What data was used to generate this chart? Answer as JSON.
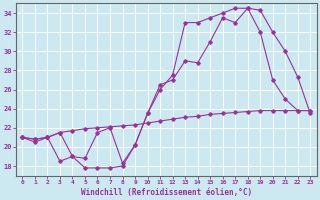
{
  "xlabel": "Windchill (Refroidissement éolien,°C)",
  "xlim": [
    -0.5,
    23.5
  ],
  "ylim": [
    17.0,
    35.0
  ],
  "yticks": [
    18,
    20,
    22,
    24,
    26,
    28,
    30,
    32,
    34
  ],
  "xticks": [
    0,
    1,
    2,
    3,
    4,
    5,
    6,
    7,
    8,
    9,
    10,
    11,
    12,
    13,
    14,
    15,
    16,
    17,
    18,
    19,
    20,
    21,
    22,
    23
  ],
  "background_color": "#cce8f0",
  "grid_color": "#ffffff",
  "line_color": "#993399",
  "curve_diag_x": [
    0,
    1,
    2,
    3,
    4,
    5,
    6,
    7,
    8,
    9,
    10,
    11,
    12,
    13,
    14,
    15,
    16,
    17,
    18,
    19,
    20,
    21,
    22,
    23
  ],
  "curve_diag_y": [
    21.0,
    20.8,
    21.0,
    21.5,
    21.7,
    21.9,
    22.0,
    22.1,
    22.2,
    22.3,
    22.5,
    22.7,
    22.9,
    23.1,
    23.2,
    23.4,
    23.5,
    23.6,
    23.7,
    23.8,
    23.8,
    23.8,
    23.8,
    23.8
  ],
  "curve_mid_x": [
    0,
    1,
    2,
    3,
    4,
    5,
    6,
    7,
    8,
    9,
    10,
    11,
    12,
    13,
    14,
    15,
    16,
    17,
    18,
    19,
    20,
    21,
    22,
    23
  ],
  "curve_mid_y": [
    21.0,
    20.8,
    21.0,
    18.5,
    19.0,
    17.8,
    17.8,
    17.8,
    18.0,
    20.2,
    23.5,
    26.5,
    27.0,
    29.0,
    28.8,
    31.0,
    33.5,
    33.0,
    34.5,
    32.0,
    27.0,
    25.0,
    23.8,
    23.8
  ],
  "curve_top_x": [
    0,
    1,
    2,
    3,
    4,
    5,
    6,
    7,
    8,
    9,
    10,
    11,
    12,
    13,
    14,
    15,
    16,
    17,
    18,
    19,
    20,
    21,
    22,
    23
  ],
  "curve_top_y": [
    21.0,
    20.5,
    21.0,
    21.5,
    19.0,
    18.8,
    21.5,
    22.0,
    18.3,
    20.2,
    23.5,
    26.0,
    27.5,
    33.0,
    33.0,
    33.5,
    34.0,
    34.5,
    34.5,
    34.3,
    32.0,
    30.0,
    27.3,
    23.5
  ]
}
